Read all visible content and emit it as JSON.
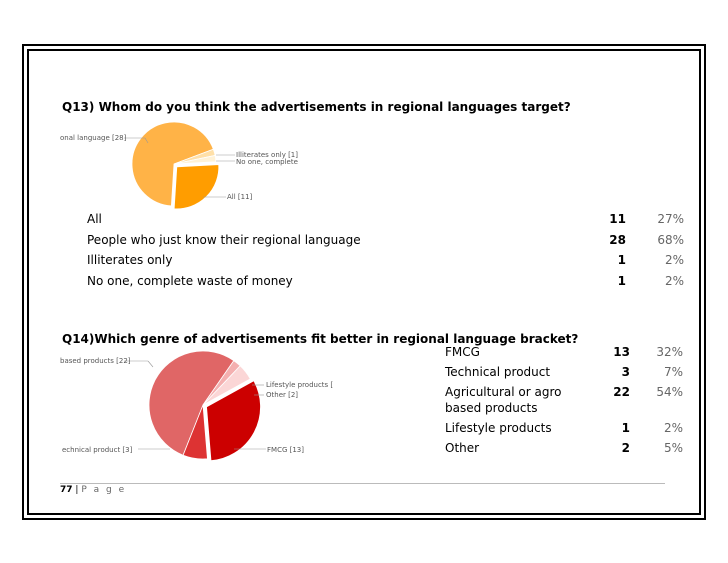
{
  "q13": {
    "question": "Q13) Whom do you think the advertisements in regional languages target?",
    "chart_data": {
      "type": "pie",
      "slices": [
        {
          "label": "onal language [28]",
          "value": 28,
          "color": "#ffb347"
        },
        {
          "label": "Illiterates only [1]",
          "value": 1,
          "color": "#ffe0a8"
        },
        {
          "label": "No one, complete в",
          "value": 1,
          "color": "#fff2d6"
        },
        {
          "label": "All [11]",
          "value": 11,
          "color": "#ff9d00"
        }
      ]
    },
    "rows": [
      {
        "label": "All",
        "count": "11",
        "pct": "27%"
      },
      {
        "label": "People who just know their regional language",
        "count": "28",
        "pct": "68%"
      },
      {
        "label": "Illiterates only",
        "count": "1",
        "pct": "2%"
      },
      {
        "label": "No one, complete waste of money",
        "count": "1",
        "pct": "2%"
      }
    ]
  },
  "q14": {
    "question": "Q14)Which genre of advertisements fit better in regional language bracket?",
    "chart_data": {
      "type": "pie",
      "slices": [
        {
          "label": "based products [22]",
          "value": 22,
          "color": "#e06666"
        },
        {
          "label": "Lifestyle products [",
          "value": 1,
          "color": "#f4b0b0"
        },
        {
          "label": "Other [2]",
          "value": 2,
          "color": "#fbd6d6"
        },
        {
          "label": "FMCG [13]",
          "value": 13,
          "color": "#cc0000"
        },
        {
          "label": "echnical product [3]",
          "value": 3,
          "color": "#dd3333"
        }
      ]
    },
    "rows": [
      {
        "label": "FMCG",
        "count": "13",
        "pct": "32%"
      },
      {
        "label": "Technical product",
        "count": "3",
        "pct": "7%"
      },
      {
        "label": "Agricultural or agro",
        "label2": "based products",
        "count": "22",
        "pct": "54%"
      },
      {
        "label": "Lifestyle products",
        "count": "1",
        "pct": "2%"
      },
      {
        "label": "Other",
        "count": "2",
        "pct": "5%"
      }
    ]
  },
  "footer": {
    "page_number": "77",
    "separator": "|",
    "page_word": "P a g e"
  }
}
